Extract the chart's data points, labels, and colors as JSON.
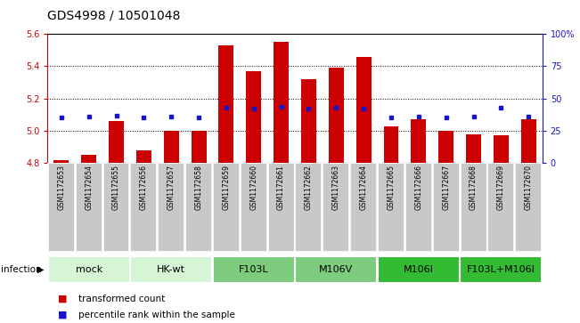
{
  "title": "GDS4998 / 10501048",
  "samples": [
    "GSM1172653",
    "GSM1172654",
    "GSM1172655",
    "GSM1172656",
    "GSM1172657",
    "GSM1172658",
    "GSM1172659",
    "GSM1172660",
    "GSM1172661",
    "GSM1172662",
    "GSM1172663",
    "GSM1172664",
    "GSM1172665",
    "GSM1172666",
    "GSM1172667",
    "GSM1172668",
    "GSM1172669",
    "GSM1172670"
  ],
  "bar_values": [
    4.82,
    4.85,
    5.06,
    4.88,
    5.0,
    5.0,
    5.53,
    5.37,
    5.55,
    5.32,
    5.39,
    5.46,
    5.03,
    5.07,
    5.0,
    4.98,
    4.97,
    5.07
  ],
  "dot_left_values": [
    5.083,
    5.088,
    5.092,
    5.085,
    5.087,
    5.085,
    5.145,
    5.138,
    5.147,
    5.14,
    5.142,
    5.14,
    5.085,
    5.09,
    5.085,
    5.09,
    5.143,
    5.09
  ],
  "ylim": [
    4.8,
    5.6
  ],
  "yticks_left": [
    4.8,
    5.0,
    5.2,
    5.4,
    5.6
  ],
  "y2lim": [
    0,
    100
  ],
  "y2ticks": [
    0,
    25,
    50,
    75,
    100
  ],
  "bar_color": "#cc0000",
  "dot_color": "#1515cc",
  "bar_base": 4.8,
  "groups": [
    {
      "label": "mock",
      "start": 0,
      "end": 2,
      "color": "#d6f5d6"
    },
    {
      "label": "HK-wt",
      "start": 3,
      "end": 5,
      "color": "#d6f5d6"
    },
    {
      "label": "F103L",
      "start": 6,
      "end": 8,
      "color": "#7dcc7d"
    },
    {
      "label": "M106V",
      "start": 9,
      "end": 11,
      "color": "#7dcc7d"
    },
    {
      "label": "M106I",
      "start": 12,
      "end": 14,
      "color": "#33bb33"
    },
    {
      "label": "F103L+M106I",
      "start": 15,
      "end": 17,
      "color": "#33bb33"
    }
  ],
  "xlabel_text": "infection",
  "legend_bar_label": "transformed count",
  "legend_dot_label": "percentile rank within the sample",
  "title_fontsize": 10,
  "tick_fontsize": 7,
  "sample_fontsize": 5.5,
  "group_fontsize": 8,
  "legend_fontsize": 7.5
}
